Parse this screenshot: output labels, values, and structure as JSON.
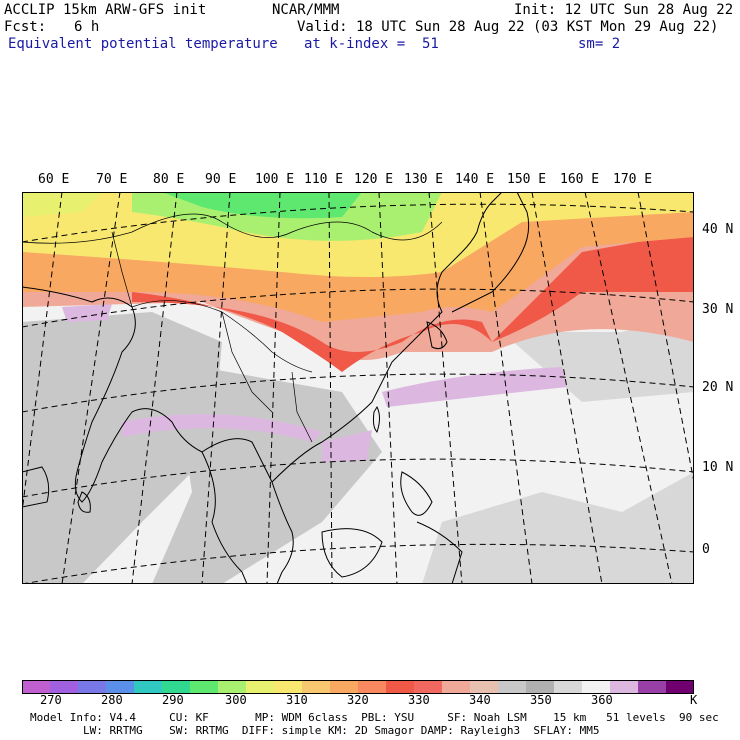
{
  "header": {
    "model": "ACCLIP 15km ARW-GFS init",
    "center": "NCAR/MMM",
    "init": "Init: 12 UTC Sun 28 Aug 22",
    "fcst_label": "Fcst:",
    "fcst_value": "6 h",
    "valid": "Valid: 18 UTC Sun 28 Aug 22 (03 KST Mon 29 Aug 22)",
    "field": "Equivalent potential temperature",
    "level": "at k-index =  51",
    "smooth": "sm= 2"
  },
  "map": {
    "lon_labels": [
      "60 E",
      "70 E",
      "80 E",
      "90 E",
      "100 E",
      "110 E",
      "120 E",
      "130 E",
      "140 E",
      "150 E",
      "160 E",
      "170 E"
    ],
    "lat_labels": [
      "40 N",
      "30 N",
      "20 N",
      "10 N",
      "0"
    ]
  },
  "colorbar": {
    "colors": [
      "#c060d0",
      "#a060e0",
      "#7878e8",
      "#5a90ea",
      "#30c8c0",
      "#30d890",
      "#5ee870",
      "#aaf070",
      "#e8f070",
      "#f8e870",
      "#f8c870",
      "#f8a860",
      "#f88860",
      "#f05848",
      "#f06860",
      "#f0a898",
      "#e8c0b0",
      "#c8c8c8",
      "#b0b0b0",
      "#d8d8d8",
      "#f2f2f2",
      "#dcb8e0",
      "#9840a8",
      "#700070"
    ],
    "ticks": [
      "270",
      "280",
      "290",
      "300",
      "310",
      "320",
      "330",
      "340",
      "350",
      "360",
      "K"
    ]
  },
  "footer": {
    "line1": "Model Info: V4.4     CU: KF       MP: WDM 6class  PBL: YSU     SF: Noah LSM    15 km   51 levels  90 sec",
    "line2": "        LW: RRTMG    SW: RRTMG  DIFF: simple KM: 2D Smagor DAMP: Rayleigh3  SFLAY: MM5"
  }
}
